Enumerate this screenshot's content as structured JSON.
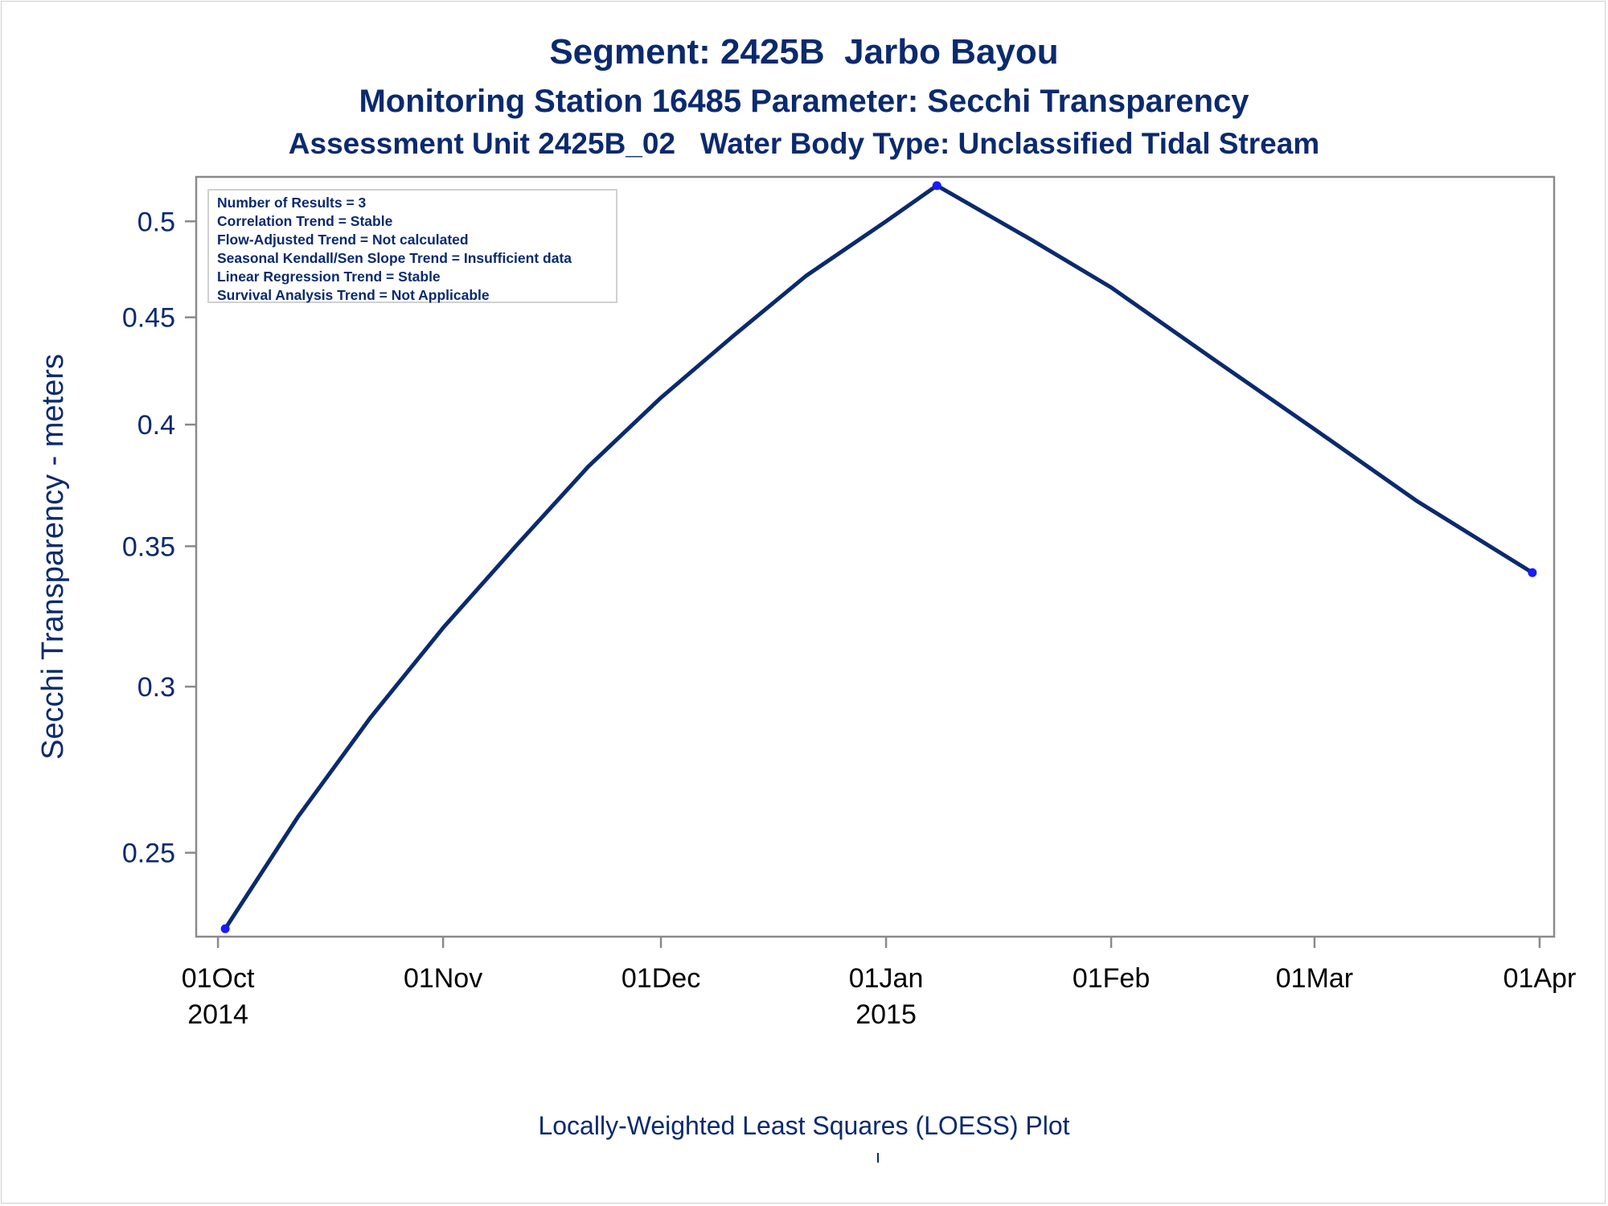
{
  "titles": {
    "line1": "Segment: 2425B  Jarbo Bayou",
    "line2": "Monitoring Station 16485 Parameter: Secchi Transparency",
    "line3": "Assessment Unit 2425B_02   Water Body Type: Unclassified Tidal Stream"
  },
  "stats": [
    "Number of Results = 3",
    "Correlation Trend = Stable",
    "Flow-Adjusted Trend = Not calculated",
    "Seasonal Kendall/Sen Slope Trend = Insufficient data",
    "Linear Regression Trend = Stable",
    "Survival Analysis Trend = Not Applicable"
  ],
  "footer": "Locally-Weighted Least Squares (LOESS) Plot",
  "colors": {
    "title": "#0b2a6e",
    "line": "#0b2a6e",
    "marker": "#1a1aff",
    "axis": "#8a8a8a",
    "statbox_border": "#d0d0d0"
  },
  "chart_data": {
    "type": "line",
    "title": "Segment: 2425B  Jarbo Bayou",
    "xlabel": "",
    "ylabel": "Secchi Transparency - meters",
    "y_scale": "log",
    "xlim": [
      "2014-09-28",
      "2015-04-03"
    ],
    "ylim": [
      0.228,
      0.525
    ],
    "yticks": [
      0.25,
      0.3,
      0.35,
      0.4,
      0.45,
      0.5
    ],
    "ytick_labels": [
      "0.25",
      "0.3",
      "0.35",
      "0.4",
      "0.45",
      "0.5"
    ],
    "xticks": [
      {
        "date": "2014-10-01",
        "label": "01Oct",
        "sublabel": "2014"
      },
      {
        "date": "2014-11-01",
        "label": "01Nov",
        "sublabel": ""
      },
      {
        "date": "2014-12-01",
        "label": "01Dec",
        "sublabel": ""
      },
      {
        "date": "2015-01-01",
        "label": "01Jan",
        "sublabel": "2015"
      },
      {
        "date": "2015-02-01",
        "label": "01Feb",
        "sublabel": ""
      },
      {
        "date": "2015-03-01",
        "label": "01Mar",
        "sublabel": ""
      },
      {
        "date": "2015-04-01",
        "label": "01Apr",
        "sublabel": ""
      }
    ],
    "points": [
      {
        "date": "2014-10-02",
        "value": 0.23
      },
      {
        "date": "2015-01-08",
        "value": 0.52
      },
      {
        "date": "2015-03-31",
        "value": 0.34
      }
    ],
    "loess_curve": [
      {
        "date": "2014-10-02",
        "value": 0.23
      },
      {
        "date": "2014-10-12",
        "value": 0.26
      },
      {
        "date": "2014-10-22",
        "value": 0.29
      },
      {
        "date": "2014-11-01",
        "value": 0.32
      },
      {
        "date": "2014-11-11",
        "value": 0.35
      },
      {
        "date": "2014-11-21",
        "value": 0.382
      },
      {
        "date": "2014-12-01",
        "value": 0.412
      },
      {
        "date": "2014-12-11",
        "value": 0.441
      },
      {
        "date": "2014-12-21",
        "value": 0.471
      },
      {
        "date": "2015-01-01",
        "value": 0.5
      },
      {
        "date": "2015-01-08",
        "value": 0.52
      },
      {
        "date": "2015-01-21",
        "value": 0.49
      },
      {
        "date": "2015-02-01",
        "value": 0.465
      },
      {
        "date": "2015-02-15",
        "value": 0.43
      },
      {
        "date": "2015-03-01",
        "value": 0.398
      },
      {
        "date": "2015-03-15",
        "value": 0.368
      },
      {
        "date": "2015-03-31",
        "value": 0.34
      }
    ],
    "grid": false,
    "legend": "none"
  }
}
